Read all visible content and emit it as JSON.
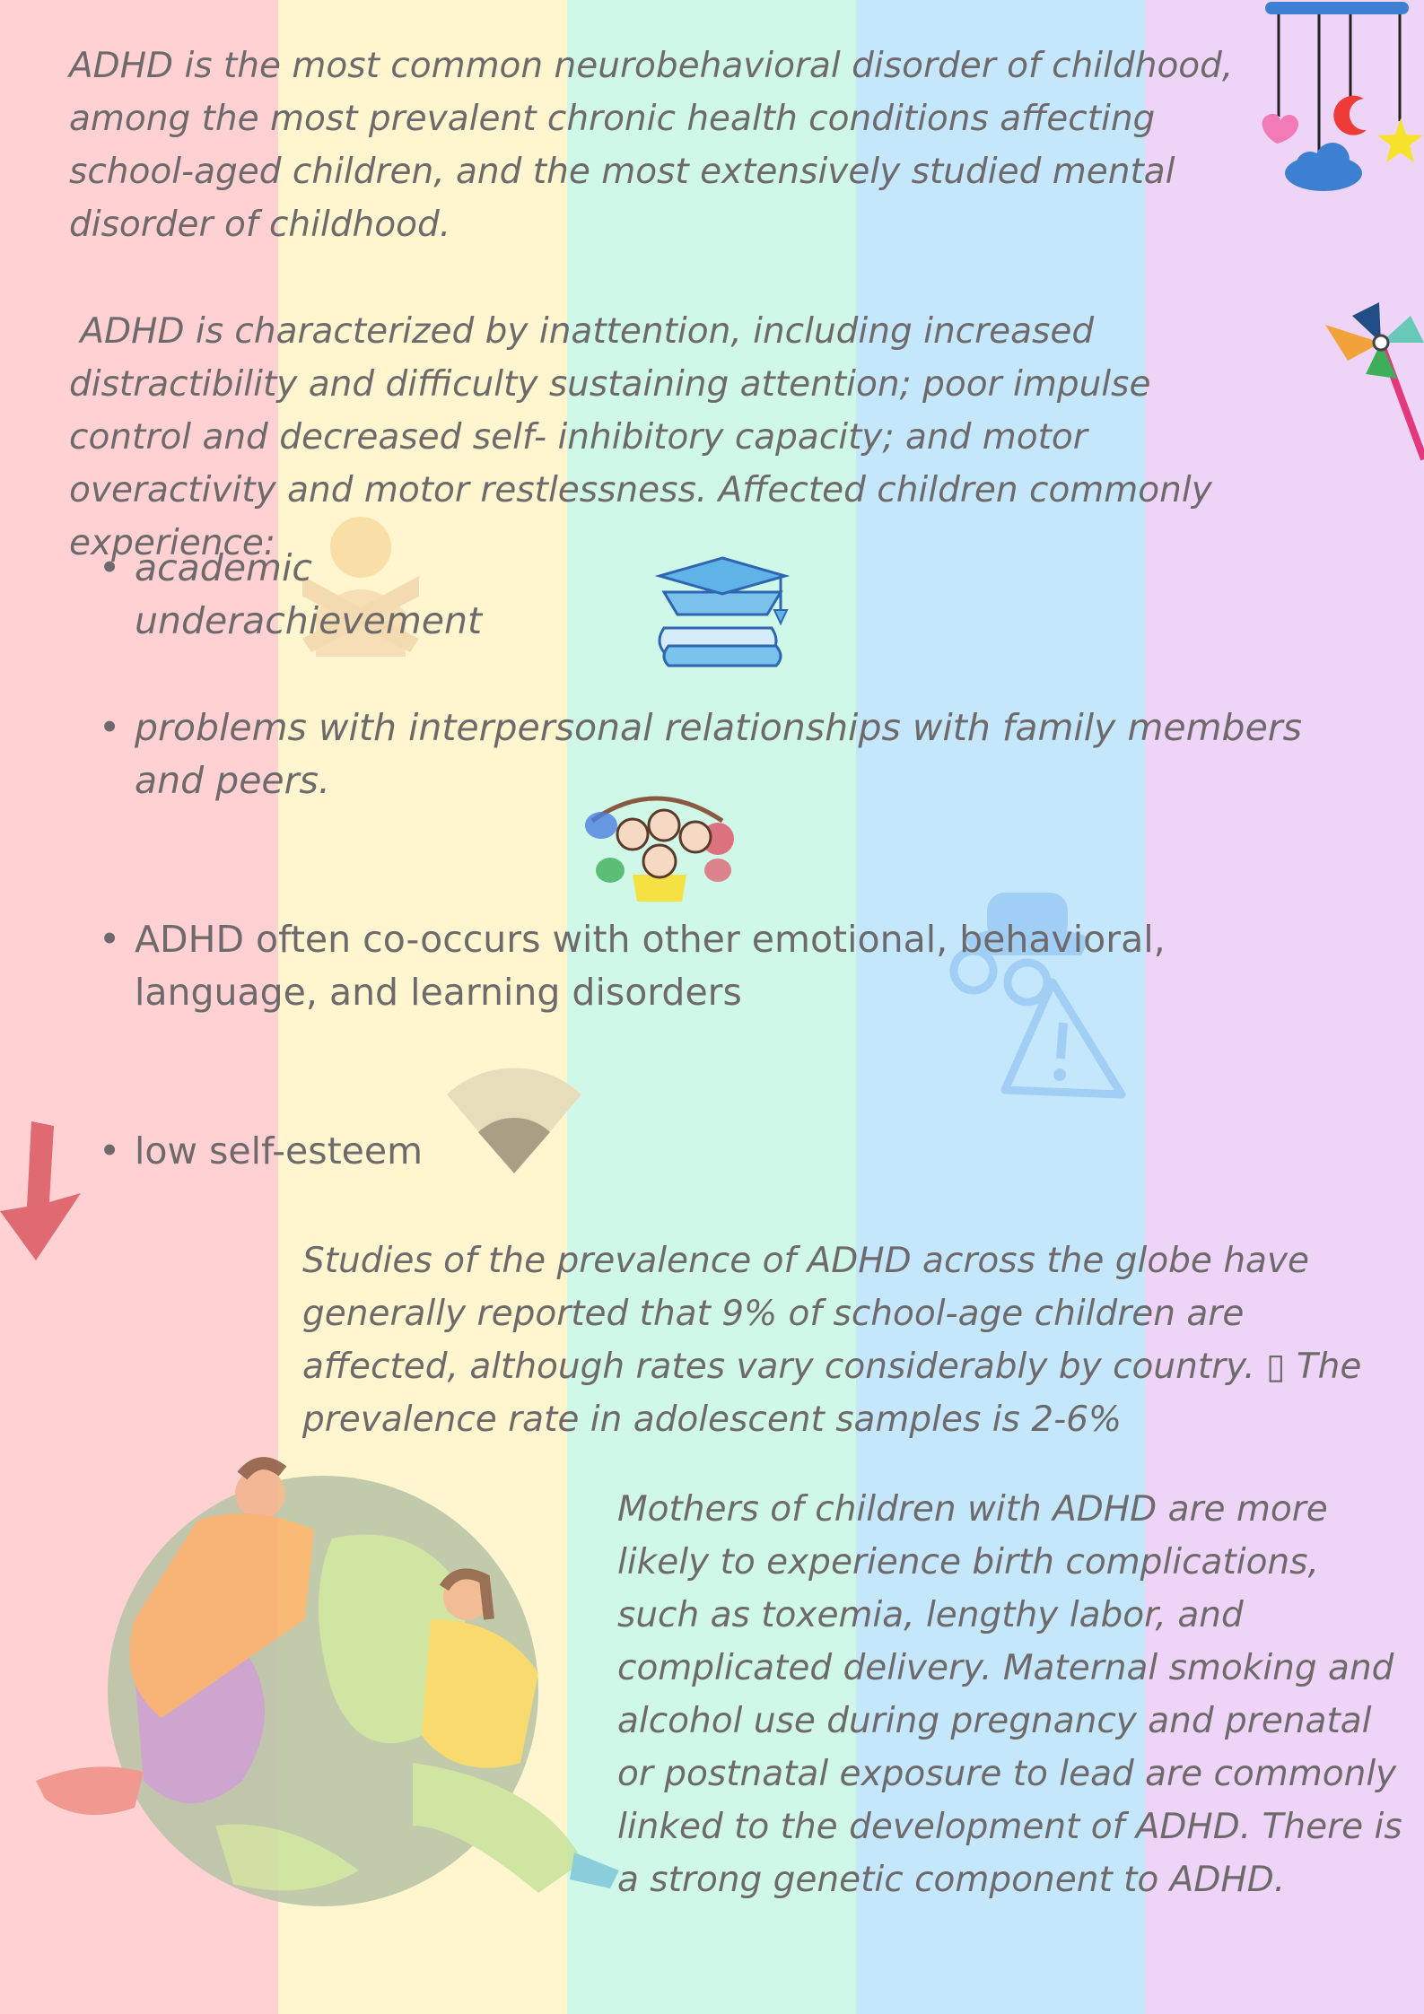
{
  "document": {
    "intro_paragraph": "ADHD is the most common neurobehavioral disorder of childhood, among the most prevalent chronic health conditions affecting school-aged children, and the most extensively studied mental disorder of childhood.",
    "characteristics_paragraph": " ADHD is characterized by inattention, including increased distractibility and difficulty sustaining attention; poor impulse control and decreased self- inhibitory capacity; and motor overactivity and motor restlessness. Affected children commonly experience:",
    "bullets": [
      {
        "text": "academic underachievement"
      },
      {
        "text": "problems with interpersonal relationships with family members and peers."
      },
      {
        "text": "ADHD often co-occurs with other emotional, behavioral, language, and learning disorders"
      },
      {
        "text": "low self-esteem"
      }
    ],
    "prevalence_paragraph": "Studies of the prevalence of ADHD across the globe have generally reported that 9% of school-age children are affected, although rates vary considerably by country. ▯ The prevalence rate in adolescent samples is 2-6%",
    "causes_paragraph": "Mothers of children with ADHD are more likely to experience birth complications, such as toxemia, lengthy labor, and complicated delivery. Maternal smoking and alcohol use during pregnancy and prenatal or postnatal exposure to lead are commonly linked to the development of ADHD. There is a strong genetic component to ADHD."
  },
  "colors": {
    "stripes": [
      "#ffd1d2",
      "#fff6cf",
      "#d0f8e9",
      "#c5e7fc",
      "#eed5f7"
    ],
    "text": "#6e6a6c"
  },
  "icons": [
    "baby-mobile-icon",
    "pinwheel-icon",
    "crossed-arms-person-icon",
    "graduation-books-icon",
    "children-group-icon",
    "spy-warning-icon",
    "pie-slice-icon",
    "down-arrow-icon",
    "hugging-globe-illustration"
  ]
}
